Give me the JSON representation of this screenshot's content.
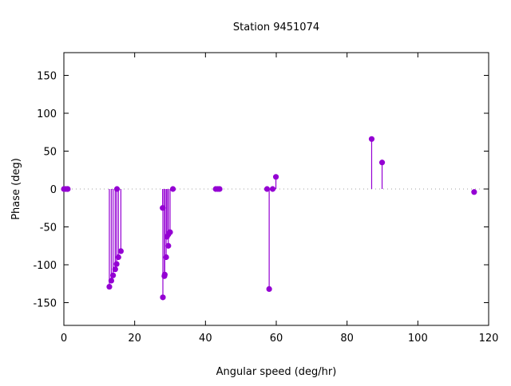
{
  "chart_data": {
    "type": "scatter",
    "style": "impulses-with-points",
    "title": "Station 9451074",
    "xlabel": "Angular speed (deg/hr)",
    "ylabel": "Phase (deg)",
    "xlim": [
      0,
      120
    ],
    "ylim": [
      -180,
      180
    ],
    "xticks": [
      0,
      20,
      40,
      60,
      80,
      100,
      120
    ],
    "yticks": [
      -150,
      -100,
      -50,
      0,
      50,
      100,
      150
    ],
    "grid": false,
    "zero_line": true,
    "color": "#9400d3",
    "points": [
      {
        "x": 0.0,
        "y": 0
      },
      {
        "x": 0.5,
        "y": 0
      },
      {
        "x": 1.0,
        "y": 0
      },
      {
        "x": 1.1,
        "y": 0
      },
      {
        "x": 12.85,
        "y": -129
      },
      {
        "x": 13.4,
        "y": -121
      },
      {
        "x": 13.9,
        "y": -114
      },
      {
        "x": 14.5,
        "y": -106
      },
      {
        "x": 14.9,
        "y": -99
      },
      {
        "x": 15.0,
        "y": 0
      },
      {
        "x": 15.4,
        "y": -90
      },
      {
        "x": 16.1,
        "y": -82
      },
      {
        "x": 27.9,
        "y": -25
      },
      {
        "x": 27.97,
        "y": -143
      },
      {
        "x": 28.4,
        "y": -115
      },
      {
        "x": 28.5,
        "y": -113
      },
      {
        "x": 28.9,
        "y": -90
      },
      {
        "x": 29.1,
        "y": -63
      },
      {
        "x": 29.5,
        "y": -75
      },
      {
        "x": 29.5,
        "y": -60
      },
      {
        "x": 30.0,
        "y": -57
      },
      {
        "x": 30.8,
        "y": 0
      },
      {
        "x": 42.9,
        "y": 0
      },
      {
        "x": 43.5,
        "y": 0
      },
      {
        "x": 44.0,
        "y": 0
      },
      {
        "x": 57.4,
        "y": 0
      },
      {
        "x": 58.0,
        "y": -132
      },
      {
        "x": 58.98,
        "y": 0
      },
      {
        "x": 59.9,
        "y": 16
      },
      {
        "x": 86.95,
        "y": 66
      },
      {
        "x": 89.9,
        "y": 35
      },
      {
        "x": 115.9,
        "y": -4
      }
    ]
  }
}
